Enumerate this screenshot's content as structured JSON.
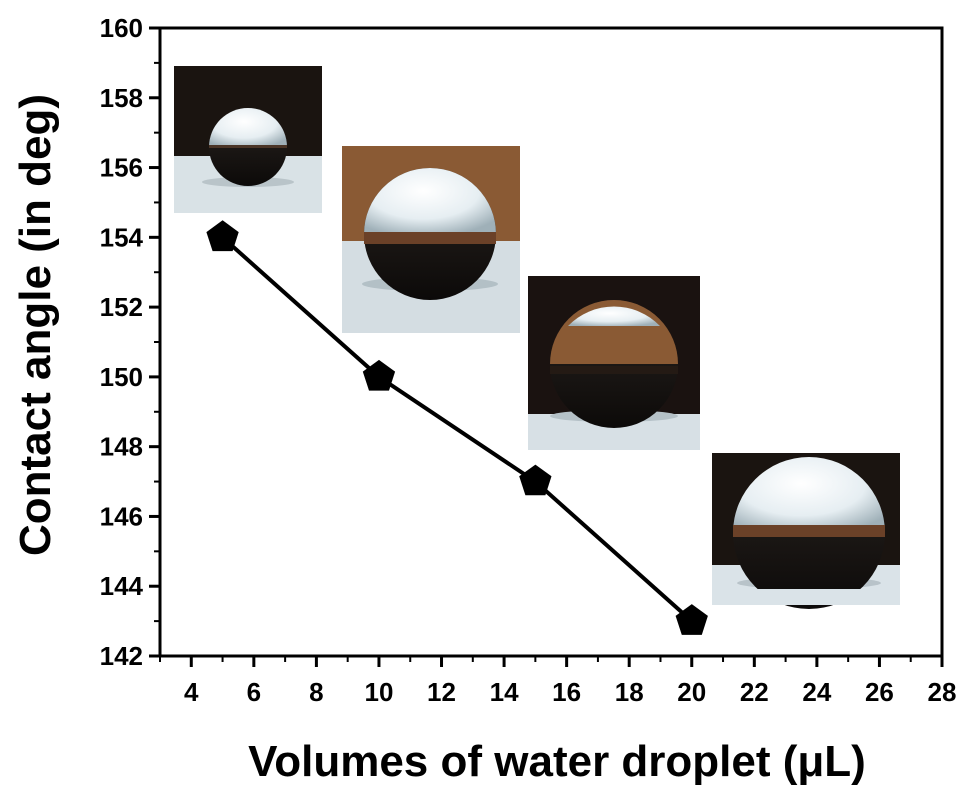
{
  "chart_data": {
    "type": "line",
    "xlabel": "Volumes of water droplet (μL)",
    "ylabel": "Contact angle (in deg)",
    "xlim": [
      3,
      28
    ],
    "ylim": [
      142,
      160
    ],
    "xticks": [
      4,
      6,
      8,
      10,
      12,
      14,
      16,
      18,
      20,
      22,
      24,
      26,
      28
    ],
    "yticks": [
      142,
      144,
      146,
      148,
      150,
      152,
      154,
      156,
      158,
      160
    ],
    "grid": false,
    "marker": "pentagon",
    "line_color": "#000000",
    "series": [
      {
        "x": [
          5,
          10,
          15,
          20
        ],
        "y": [
          154,
          150,
          147,
          143
        ]
      }
    ],
    "insets": [
      {
        "name": "droplet-photo-5uL",
        "x": 5,
        "background": "#1a1410",
        "surface": "#d9e2e6"
      },
      {
        "name": "droplet-photo-10uL",
        "x": 10,
        "background": "#8a5a34",
        "surface": "#d4dde2"
      },
      {
        "name": "droplet-photo-15uL",
        "x": 15,
        "background": "#1a1210",
        "surface": "#d7e0e5"
      },
      {
        "name": "droplet-photo-20uL",
        "x": 20,
        "background": "#1a1410",
        "surface": "#dae3e8"
      }
    ]
  }
}
